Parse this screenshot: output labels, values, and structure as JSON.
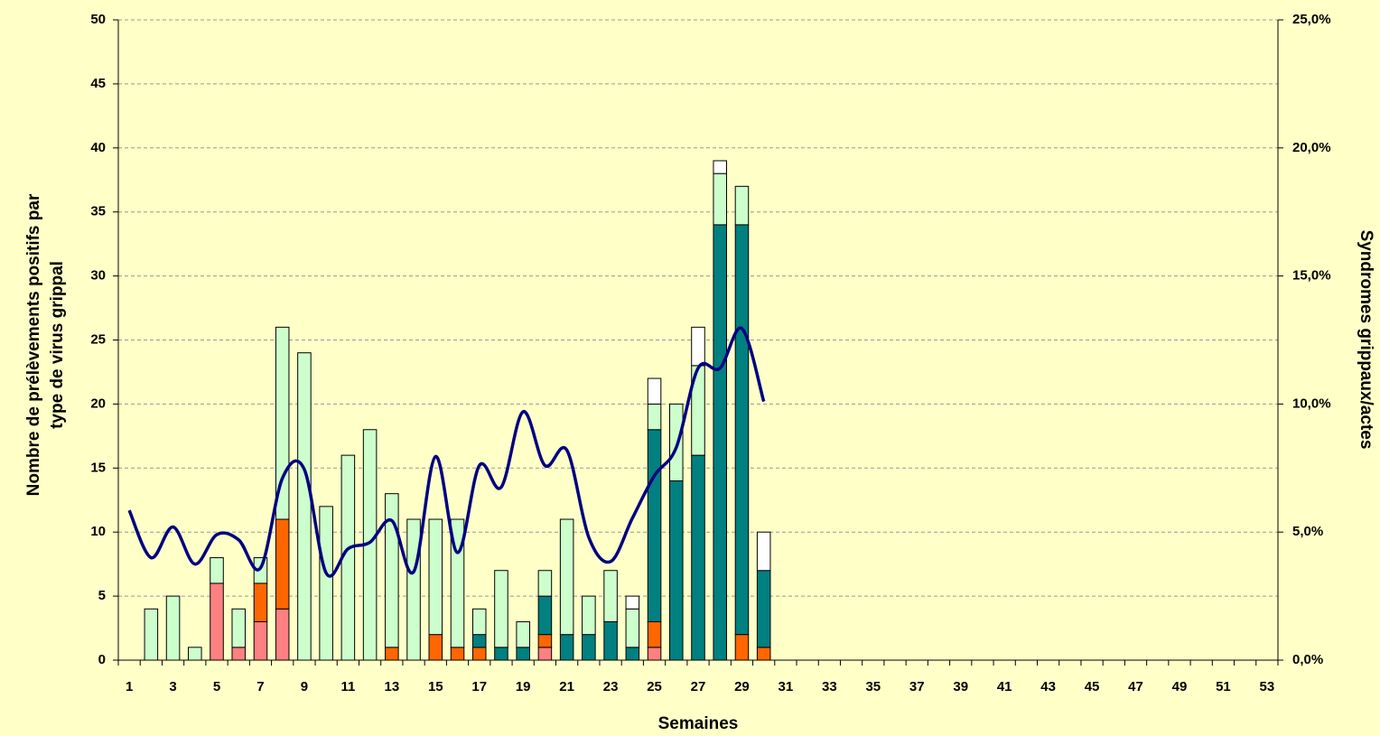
{
  "chart_data": {
    "type": "bar",
    "stacked": true,
    "x_label": "Semaines",
    "y_label": [
      "Nombre de prélèvements positifs par",
      "type de virus grippal"
    ],
    "y2_label": "Syndromes grippaux/actes",
    "categories": [
      1,
      null,
      3,
      null,
      5,
      null,
      7,
      null,
      9,
      null,
      11,
      null,
      13,
      null,
      15,
      null,
      17,
      null,
      19,
      null,
      21,
      null,
      23,
      null,
      25,
      null,
      27,
      null,
      29,
      null,
      31,
      null,
      33,
      null,
      35,
      null,
      37,
      null,
      39,
      null,
      41,
      null,
      43,
      null,
      45,
      null,
      47,
      null,
      49,
      null,
      51,
      null,
      53
    ],
    "ylim": [
      0,
      50
    ],
    "yticks": [
      0,
      5,
      10,
      15,
      20,
      25,
      30,
      35,
      40,
      45,
      50
    ],
    "y2lim": [
      0,
      25
    ],
    "y2ticks": [
      {
        "value": 0,
        "label": "0,0%"
      },
      {
        "value": 5,
        "label": "5,0%"
      },
      {
        "value": 10,
        "label": "10,0%"
      },
      {
        "value": 15,
        "label": "15,0%"
      },
      {
        "value": 20,
        "label": "20,0%"
      },
      {
        "value": 25,
        "label": "25,0%"
      }
    ],
    "grid": true,
    "background": "#ffffc8",
    "series": [
      {
        "color": "#ff8080",
        "values": [
          0,
          0,
          0,
          0,
          6,
          1,
          3,
          4,
          0,
          0,
          0,
          0,
          0,
          0,
          0,
          0,
          0,
          0,
          0,
          1,
          0,
          0,
          0,
          0,
          1,
          0,
          0,
          0,
          0,
          0,
          null,
          null,
          null,
          null,
          null,
          null,
          null,
          null,
          null,
          null,
          null,
          null,
          null,
          null,
          null,
          null,
          null,
          null,
          null,
          null,
          null,
          null,
          null
        ]
      },
      {
        "color": "#ff6600",
        "values": [
          0,
          0,
          0,
          0,
          0,
          0,
          3,
          7,
          0,
          0,
          0,
          0,
          1,
          0,
          2,
          1,
          1,
          0,
          0,
          1,
          0,
          0,
          0,
          0,
          2,
          0,
          0,
          0,
          2,
          1,
          null,
          null,
          null,
          null,
          null,
          null,
          null,
          null,
          null,
          null,
          null,
          null,
          null,
          null,
          null,
          null,
          null,
          null,
          null,
          null,
          null,
          null,
          null
        ]
      },
      {
        "color": "#008080",
        "values": [
          0,
          0,
          0,
          0,
          0,
          0,
          0,
          0,
          0,
          0,
          0,
          0,
          0,
          0,
          0,
          0,
          1,
          1,
          1,
          3,
          2,
          2,
          3,
          1,
          15,
          14,
          16,
          34,
          32,
          6,
          null,
          null,
          null,
          null,
          null,
          null,
          null,
          null,
          null,
          null,
          null,
          null,
          null,
          null,
          null,
          null,
          null,
          null,
          null,
          null,
          null,
          null,
          null
        ]
      },
      {
        "color": "#ccffcc",
        "values": [
          0,
          4,
          5,
          1,
          2,
          3,
          2,
          15,
          24,
          12,
          16,
          18,
          12,
          11,
          9,
          10,
          2,
          6,
          2,
          2,
          9,
          3,
          4,
          3,
          2,
          6,
          7,
          4,
          3,
          0,
          null,
          null,
          null,
          null,
          null,
          null,
          null,
          null,
          null,
          null,
          null,
          null,
          null,
          null,
          null,
          null,
          null,
          null,
          null,
          null,
          null,
          null,
          null
        ]
      },
      {
        "color": "#ffffff",
        "values": [
          0,
          0,
          0,
          0,
          0,
          0,
          0,
          0,
          0,
          0,
          0,
          0,
          0,
          0,
          0,
          0,
          0,
          0,
          0,
          0,
          0,
          0,
          0,
          1,
          2,
          0,
          3,
          1,
          0,
          3,
          null,
          null,
          null,
          null,
          null,
          null,
          null,
          null,
          null,
          null,
          null,
          null,
          null,
          null,
          null,
          null,
          null,
          null,
          null,
          null,
          null,
          null,
          null
        ]
      },
      {
        "type": "line",
        "axis": "y2",
        "color": "#000080",
        "smooth": true,
        "values": [
          5.85,
          4.0,
          5.2,
          3.75,
          4.9,
          4.7,
          3.6,
          7.1,
          7.45,
          3.4,
          4.35,
          4.6,
          5.45,
          3.45,
          7.95,
          4.2,
          7.6,
          6.75,
          9.7,
          7.6,
          8.2,
          4.8,
          3.85,
          5.55,
          7.2,
          8.3,
          11.4,
          11.4,
          12.95,
          10.1,
          null,
          null,
          null,
          null,
          null,
          null,
          null,
          null,
          null,
          null,
          null,
          null,
          null,
          null,
          null,
          null,
          null,
          null,
          null,
          null,
          null,
          null,
          null
        ]
      }
    ]
  }
}
